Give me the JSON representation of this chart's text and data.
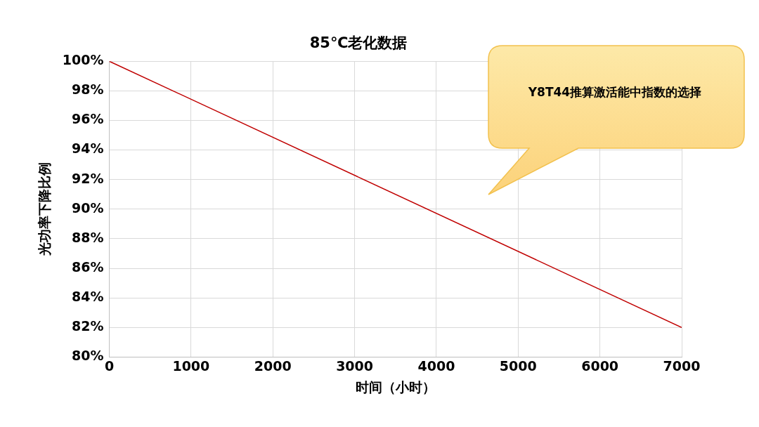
{
  "chart_data": {
    "type": "line",
    "title": "85℃老化数据",
    "xlabel": "时间（小时）",
    "ylabel": "光功率下降比例",
    "x": [
      0,
      7000
    ],
    "series": [
      {
        "color": "#c00000",
        "values": [
          100,
          82
        ]
      }
    ],
    "xlim": [
      0,
      7000
    ],
    "xticks": [
      0,
      1000,
      2000,
      3000,
      4000,
      5000,
      6000,
      7000
    ],
    "ylim": [
      80,
      100
    ],
    "yticks": [
      {
        "value": 80,
        "label": "80%"
      },
      {
        "value": 82,
        "label": "82%"
      },
      {
        "value": 84,
        "label": "84%"
      },
      {
        "value": 86,
        "label": "86%"
      },
      {
        "value": 88,
        "label": "88%"
      },
      {
        "value": 90,
        "label": "90%"
      },
      {
        "value": 92,
        "label": "92%"
      },
      {
        "value": 94,
        "label": "94%"
      },
      {
        "value": 96,
        "label": "96%"
      },
      {
        "value": 98,
        "label": "98%"
      },
      {
        "value": 100,
        "label": "100%"
      }
    ],
    "grid": true,
    "marker": "none",
    "line_style": "solid",
    "annotations": [
      "Y8T44推算激活能中指数的选择"
    ]
  }
}
